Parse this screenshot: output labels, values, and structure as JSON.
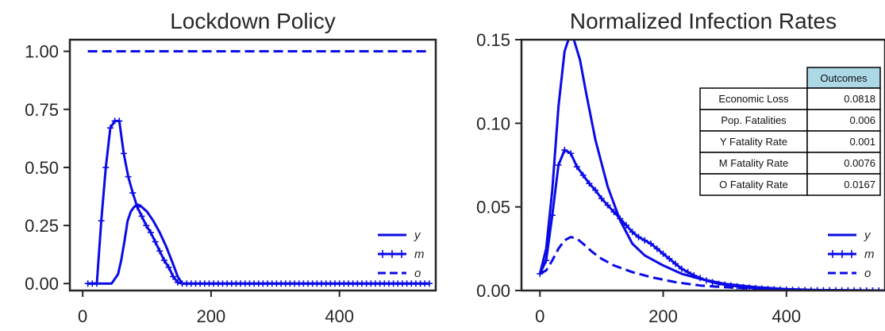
{
  "chart_data": [
    {
      "type": "line",
      "title": "Lockdown Policy",
      "xlabel": "",
      "ylabel": "",
      "xlim": [
        -20,
        550
      ],
      "ylim": [
        -0.03,
        1.05
      ],
      "xticks": [
        0,
        200,
        400
      ],
      "xtick_labels": [
        "0",
        "200",
        "400"
      ],
      "yticks": [
        0,
        0.25,
        0.5,
        0.75,
        1.0
      ],
      "ytick_labels": [
        "0.00",
        "0.25",
        "0.50",
        "0.75",
        "1.00"
      ],
      "grid": false,
      "legend_position": "lower-right",
      "series": [
        {
          "name": "y",
          "style": "solid",
          "color": "#0a0ae6",
          "x": [
            8,
            30,
            45,
            55,
            60,
            65,
            70,
            75,
            80,
            85,
            90,
            100,
            110,
            120,
            130,
            140,
            148,
            155,
            160,
            200,
            300,
            400,
            540
          ],
          "y": [
            0,
            0,
            0,
            0.04,
            0.1,
            0.18,
            0.27,
            0.31,
            0.33,
            0.34,
            0.335,
            0.31,
            0.27,
            0.22,
            0.16,
            0.09,
            0.03,
            0,
            0,
            0,
            0,
            0,
            0
          ]
        },
        {
          "name": "m",
          "style": "plus-markers",
          "color": "#0a0ae6",
          "x": [
            8,
            15,
            22,
            29,
            36,
            43,
            50,
            57,
            64,
            71,
            78,
            85,
            92,
            99,
            106,
            113,
            120,
            127,
            134,
            141,
            148,
            155,
            162,
            169,
            176,
            183,
            190,
            197,
            204,
            211,
            218,
            225,
            232,
            239,
            246,
            253,
            260,
            267,
            274,
            281,
            288,
            295,
            302,
            309,
            316,
            323,
            330,
            337,
            344,
            351,
            358,
            365,
            372,
            379,
            386,
            393,
            400,
            407,
            414,
            421,
            428,
            435,
            442,
            449,
            456,
            463,
            470,
            477,
            484,
            491,
            498,
            505,
            512,
            519,
            526,
            533,
            540
          ],
          "y": [
            0,
            0,
            0,
            0.27,
            0.5,
            0.67,
            0.7,
            0.7,
            0.56,
            0.46,
            0.39,
            0.33,
            0.29,
            0.25,
            0.22,
            0.18,
            0.14,
            0.1,
            0.07,
            0.03,
            0.005,
            0,
            0,
            0,
            0,
            0,
            0,
            0,
            0,
            0,
            0,
            0,
            0,
            0,
            0,
            0,
            0,
            0,
            0,
            0,
            0,
            0,
            0,
            0,
            0,
            0,
            0,
            0,
            0,
            0,
            0,
            0,
            0,
            0,
            0,
            0,
            0,
            0,
            0,
            0,
            0,
            0,
            0,
            0,
            0,
            0,
            0,
            0,
            0,
            0,
            0,
            0,
            0,
            0,
            0,
            0,
            0
          ]
        },
        {
          "name": "o",
          "style": "dashed",
          "color": "#0a0ae6",
          "x": [
            8,
            540
          ],
          "y": [
            1.0,
            1.0
          ]
        }
      ]
    },
    {
      "type": "line",
      "title": "Normalized Infection Rates",
      "xlabel": "",
      "ylabel": "",
      "xlim": [
        -30,
        560
      ],
      "ylim": [
        0,
        0.15
      ],
      "xticks": [
        0,
        200,
        400
      ],
      "xtick_labels": [
        "0",
        "200",
        "400"
      ],
      "yticks": [
        0,
        0.05,
        0.1,
        0.15
      ],
      "ytick_labels": [
        "0.00",
        "0.05",
        "0.10",
        "0.15"
      ],
      "grid": false,
      "legend_position": "lower-right",
      "series": [
        {
          "name": "y",
          "style": "solid",
          "color": "#0a0ae6",
          "x": [
            0,
            10,
            20,
            30,
            40,
            48,
            55,
            65,
            75,
            90,
            110,
            130,
            150,
            170,
            200,
            230,
            260,
            300,
            350,
            400,
            450,
            500,
            560
          ],
          "y": [
            0.01,
            0.025,
            0.06,
            0.11,
            0.143,
            0.152,
            0.15,
            0.138,
            0.118,
            0.09,
            0.062,
            0.042,
            0.028,
            0.021,
            0.015,
            0.01,
            0.007,
            0.004,
            0.002,
            0.0008,
            0.0003,
            0.0001,
            0.0
          ]
        },
        {
          "name": "m",
          "style": "plus-markers",
          "color": "#0a0ae6",
          "x": [
            0,
            10,
            20,
            30,
            40,
            50,
            60,
            70,
            80,
            90,
            100,
            110,
            120,
            130,
            140,
            150,
            160,
            170,
            180,
            190,
            200,
            210,
            220,
            230,
            240,
            250,
            260,
            270,
            280,
            290,
            300,
            310,
            320,
            330,
            340,
            350,
            360,
            370,
            380,
            390,
            400,
            410,
            420,
            430,
            440,
            450,
            460,
            470,
            480,
            490,
            500,
            510,
            520,
            530,
            540,
            550,
            560
          ],
          "y": [
            0.01,
            0.018,
            0.045,
            0.075,
            0.084,
            0.082,
            0.074,
            0.069,
            0.064,
            0.06,
            0.055,
            0.051,
            0.047,
            0.043,
            0.039,
            0.035,
            0.032,
            0.03,
            0.028,
            0.025,
            0.022,
            0.019,
            0.016,
            0.013,
            0.011,
            0.009,
            0.0075,
            0.006,
            0.005,
            0.004,
            0.0035,
            0.003,
            0.0025,
            0.002,
            0.0017,
            0.0014,
            0.0011,
            0.0009,
            0.0007,
            0.0006,
            0.0005,
            0.0004,
            0.0003,
            0.00025,
            0.0002,
            0.00015,
            0.0001,
            0.0001,
            0.0001,
            5e-05,
            5e-05,
            5e-05,
            5e-05,
            0.0,
            0.0,
            0.0,
            0.0
          ]
        },
        {
          "name": "o",
          "style": "dashed",
          "color": "#0a0ae6",
          "x": [
            0,
            10,
            20,
            30,
            40,
            50,
            60,
            70,
            85,
            100,
            120,
            150,
            180,
            220,
            260,
            300,
            350,
            400,
            450,
            500,
            560
          ],
          "y": [
            0.01,
            0.012,
            0.018,
            0.025,
            0.03,
            0.032,
            0.031,
            0.028,
            0.023,
            0.019,
            0.015,
            0.011,
            0.008,
            0.005,
            0.003,
            0.002,
            0.001,
            0.0005,
            0.0002,
            0.0001,
            0.0
          ]
        }
      ],
      "table": {
        "header": "Outcomes",
        "header_color": "#add8e6",
        "rows": [
          {
            "label": "Economic Loss",
            "value": "0.0818"
          },
          {
            "label": "Pop. Fatalities",
            "value": "0.006"
          },
          {
            "label": "Y Fatality Rate",
            "value": "0.001"
          },
          {
            "label": "M Fatality Rate",
            "value": "0.0076"
          },
          {
            "label": "O Fatality Rate",
            "value": "0.0167"
          }
        ]
      }
    }
  ]
}
